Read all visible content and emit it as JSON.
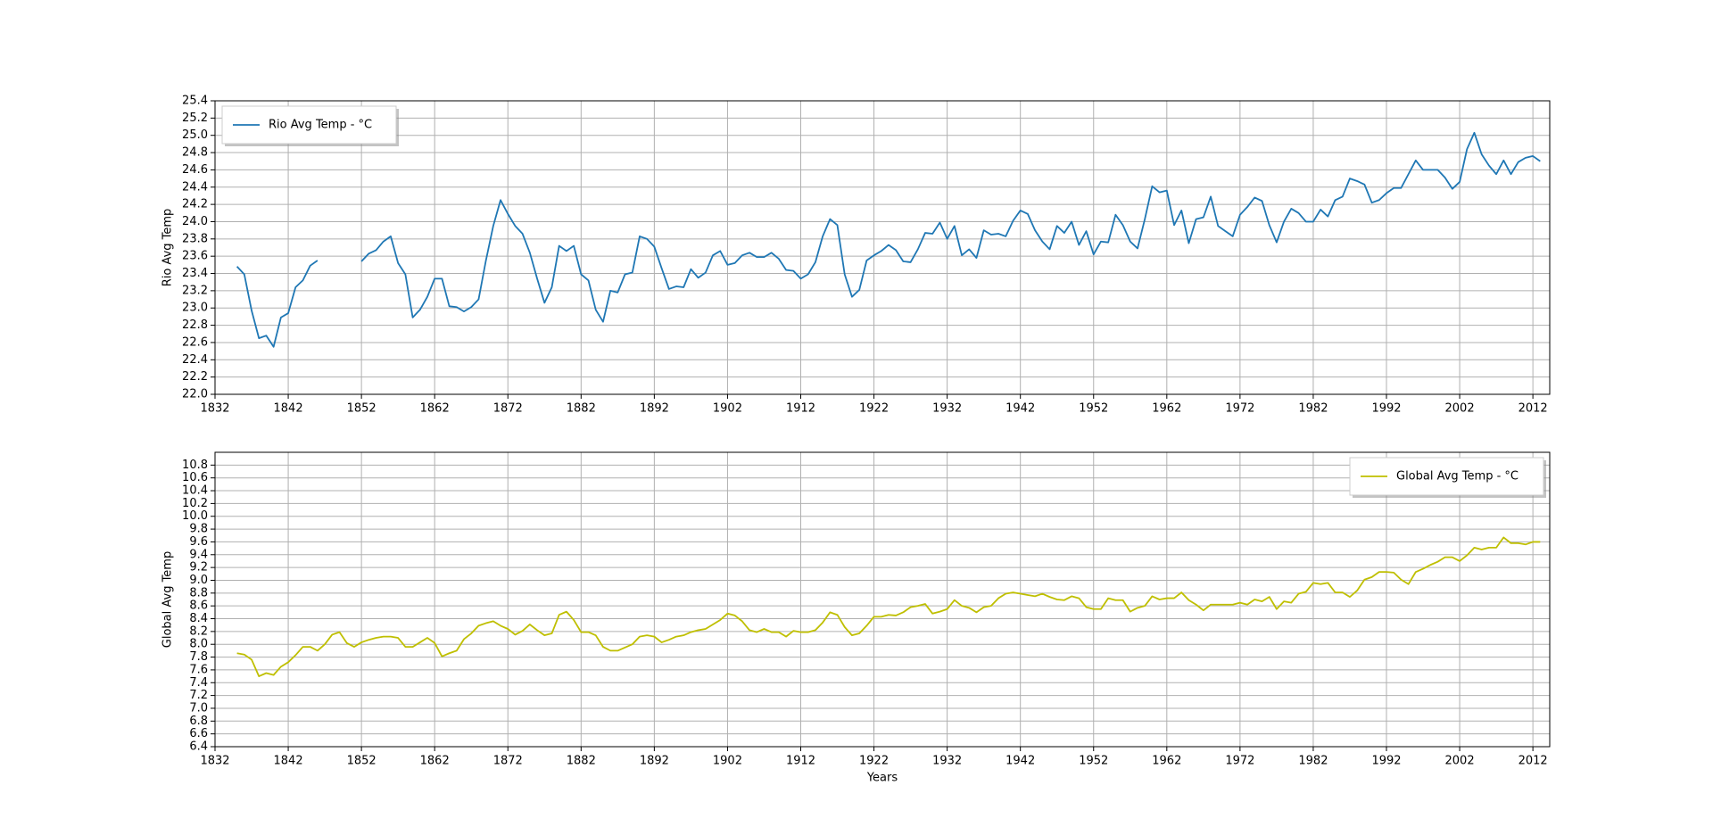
{
  "chart_data": [
    {
      "type": "line",
      "y_label": "Rio Avg Temp",
      "x": [
        1835,
        1836,
        1837,
        1838,
        1839,
        1840,
        1841,
        1842,
        1843,
        1844,
        1845,
        1846,
        1847,
        1848,
        1849,
        1850,
        1851,
        1852,
        1853,
        1854,
        1855,
        1856,
        1857,
        1858,
        1859,
        1860,
        1861,
        1862,
        1863,
        1864,
        1865,
        1866,
        1867,
        1868,
        1869,
        1870,
        1871,
        1872,
        1873,
        1874,
        1875,
        1876,
        1877,
        1878,
        1879,
        1880,
        1881,
        1882,
        1883,
        1884,
        1885,
        1886,
        1887,
        1888,
        1889,
        1890,
        1891,
        1892,
        1893,
        1894,
        1895,
        1896,
        1897,
        1898,
        1899,
        1900,
        1901,
        1902,
        1903,
        1904,
        1905,
        1906,
        1907,
        1908,
        1909,
        1910,
        1911,
        1912,
        1913,
        1914,
        1915,
        1916,
        1917,
        1918,
        1919,
        1920,
        1921,
        1922,
        1923,
        1924,
        1925,
        1926,
        1927,
        1928,
        1929,
        1930,
        1931,
        1932,
        1933,
        1934,
        1935,
        1936,
        1937,
        1938,
        1939,
        1940,
        1941,
        1942,
        1943,
        1944,
        1945,
        1946,
        1947,
        1948,
        1949,
        1950,
        1951,
        1952,
        1953,
        1954,
        1955,
        1956,
        1957,
        1958,
        1959,
        1960,
        1961,
        1962,
        1963,
        1964,
        1965,
        1966,
        1967,
        1968,
        1969,
        1970,
        1971,
        1972,
        1973,
        1974,
        1975,
        1976,
        1977,
        1978,
        1979,
        1980,
        1981,
        1982,
        1983,
        1984,
        1985,
        1986,
        1987,
        1988,
        1989,
        1990,
        1991,
        1992,
        1993,
        1994,
        1995,
        1996,
        1997,
        1998,
        1999,
        2000,
        2001,
        2002,
        2003,
        2004,
        2005,
        2006,
        2007,
        2008,
        2009,
        2010,
        2011,
        2012,
        2013
      ],
      "series": [
        {
          "name": "Rio Avg Temp - °C",
          "color": "#1f77b4",
          "values": [
            23.48,
            23.39,
            22.97,
            22.65,
            22.68,
            22.55,
            22.89,
            22.94,
            23.24,
            23.32,
            23.49,
            23.55,
            null,
            null,
            null,
            null,
            null,
            23.54,
            23.63,
            23.67,
            23.77,
            23.83,
            23.52,
            23.39,
            22.89,
            22.98,
            23.13,
            23.34,
            23.34,
            23.02,
            23.01,
            22.96,
            23.01,
            23.1,
            23.55,
            23.95,
            24.25,
            24.09,
            23.95,
            23.86,
            23.64,
            23.34,
            23.06,
            23.24,
            23.72,
            23.66,
            23.72,
            23.39,
            23.32,
            22.98,
            22.84,
            23.2,
            23.18,
            23.39,
            23.41,
            23.83,
            23.8,
            23.71,
            23.46,
            23.22,
            23.25,
            23.24,
            23.45,
            23.35,
            23.41,
            23.61,
            23.66,
            23.5,
            23.52,
            23.61,
            23.64,
            23.59,
            23.59,
            23.64,
            23.57,
            23.44,
            23.43,
            23.34,
            23.39,
            23.53,
            23.83,
            24.03,
            23.96,
            23.39,
            23.13,
            23.21,
            23.55,
            23.61,
            23.66,
            23.73,
            23.67,
            23.54,
            23.53,
            23.68,
            23.87,
            23.86,
            23.99,
            23.8,
            23.95,
            23.61,
            23.68,
            23.58,
            23.9,
            23.85,
            23.86,
            23.83,
            24.01,
            24.13,
            24.09,
            23.9,
            23.77,
            23.68,
            23.95,
            23.87,
            24.0,
            23.73,
            23.89,
            23.62,
            23.77,
            23.76,
            24.08,
            23.96,
            23.77,
            23.69,
            24.03,
            24.41,
            24.34,
            24.36,
            23.96,
            24.13,
            23.75,
            24.03,
            24.05,
            24.29,
            23.95,
            23.89,
            23.83,
            24.08,
            24.17,
            24.28,
            24.24,
            23.96,
            23.76,
            24.0,
            24.15,
            24.1,
            24.0,
            24.0,
            24.14,
            24.06,
            24.25,
            24.29,
            24.5,
            24.47,
            24.43,
            24.22,
            24.25,
            24.33,
            24.39,
            24.39,
            24.55,
            24.71,
            24.6,
            24.6,
            24.6,
            24.51,
            24.38,
            24.46,
            24.84,
            25.03,
            24.78,
            24.65,
            24.55,
            24.71,
            24.55,
            24.69,
            24.74,
            24.76,
            24.7
          ]
        }
      ],
      "xlim": [
        1832,
        2014.3
      ],
      "xticks": [
        1832,
        1842,
        1852,
        1862,
        1872,
        1882,
        1892,
        1902,
        1912,
        1922,
        1932,
        1942,
        1952,
        1962,
        1972,
        1982,
        1992,
        2002,
        2012
      ],
      "ylim": [
        22.0,
        25.4
      ],
      "yticks": [
        {
          "value": 22.0,
          "label": "22.0"
        },
        22.2,
        22.4,
        22.6,
        22.8,
        {
          "value": 23.0,
          "label": "23.0"
        },
        23.2,
        23.4,
        23.6,
        23.8,
        {
          "value": 24.0,
          "label": "24.0"
        },
        24.2,
        24.4,
        24.6,
        24.8,
        {
          "value": 25.0,
          "label": "25.0"
        },
        25.2,
        25.4
      ],
      "grid": true,
      "legend": "upper left"
    },
    {
      "type": "line",
      "y_label": "Global Avg Temp",
      "x_label": "Years",
      "x": [
        1835,
        1836,
        1837,
        1838,
        1839,
        1840,
        1841,
        1842,
        1843,
        1844,
        1845,
        1846,
        1847,
        1848,
        1849,
        1850,
        1851,
        1852,
        1853,
        1854,
        1855,
        1856,
        1857,
        1858,
        1859,
        1860,
        1861,
        1862,
        1863,
        1864,
        1865,
        1866,
        1867,
        1868,
        1869,
        1870,
        1871,
        1872,
        1873,
        1874,
        1875,
        1876,
        1877,
        1878,
        1879,
        1880,
        1881,
        1882,
        1883,
        1884,
        1885,
        1886,
        1887,
        1888,
        1889,
        1890,
        1891,
        1892,
        1893,
        1894,
        1895,
        1896,
        1897,
        1898,
        1899,
        1900,
        1901,
        1902,
        1903,
        1904,
        1905,
        1906,
        1907,
        1908,
        1909,
        1910,
        1911,
        1912,
        1913,
        1914,
        1915,
        1916,
        1917,
        1918,
        1919,
        1920,
        1921,
        1922,
        1923,
        1924,
        1925,
        1926,
        1927,
        1928,
        1929,
        1930,
        1931,
        1932,
        1933,
        1934,
        1935,
        1936,
        1937,
        1938,
        1939,
        1940,
        1941,
        1942,
        1943,
        1944,
        1945,
        1946,
        1947,
        1948,
        1949,
        1950,
        1951,
        1952,
        1953,
        1954,
        1955,
        1956,
        1957,
        1958,
        1959,
        1960,
        1961,
        1962,
        1963,
        1964,
        1965,
        1966,
        1967,
        1968,
        1969,
        1970,
        1971,
        1972,
        1973,
        1974,
        1975,
        1976,
        1977,
        1978,
        1979,
        1980,
        1981,
        1982,
        1983,
        1984,
        1985,
        1986,
        1987,
        1988,
        1989,
        1990,
        1991,
        1992,
        1993,
        1994,
        1995,
        1996,
        1997,
        1998,
        1999,
        2000,
        2001,
        2002,
        2003,
        2004,
        2005,
        2006,
        2007,
        2008,
        2009,
        2010,
        2011,
        2012,
        2013
      ],
      "series": [
        {
          "name": "Global Avg Temp - °C",
          "color": "#bfbf00",
          "values": [
            7.86,
            7.84,
            7.76,
            7.5,
            7.55,
            7.52,
            7.65,
            7.72,
            7.83,
            7.96,
            7.96,
            7.9,
            8.0,
            8.15,
            8.19,
            8.02,
            7.96,
            8.03,
            8.07,
            8.1,
            8.12,
            8.12,
            8.1,
            7.96,
            7.96,
            8.03,
            8.1,
            8.02,
            7.81,
            7.86,
            7.9,
            8.08,
            8.17,
            8.29,
            8.33,
            8.36,
            8.29,
            8.24,
            8.15,
            8.21,
            8.31,
            8.22,
            8.14,
            8.17,
            8.46,
            8.51,
            8.38,
            8.19,
            8.19,
            8.14,
            7.96,
            7.9,
            7.9,
            7.95,
            8.0,
            8.12,
            8.14,
            8.12,
            8.03,
            8.07,
            8.12,
            8.14,
            8.19,
            8.22,
            8.24,
            8.31,
            8.38,
            8.48,
            8.45,
            8.36,
            8.22,
            8.19,
            8.24,
            8.19,
            8.19,
            8.12,
            8.21,
            8.19,
            8.19,
            8.22,
            8.34,
            8.5,
            8.46,
            8.27,
            8.14,
            8.17,
            8.29,
            8.43,
            8.43,
            8.46,
            8.45,
            8.5,
            8.58,
            8.6,
            8.63,
            8.48,
            8.51,
            8.55,
            8.69,
            8.6,
            8.57,
            8.5,
            8.58,
            8.6,
            8.72,
            8.79,
            8.81,
            8.79,
            8.77,
            8.75,
            8.79,
            8.74,
            8.7,
            8.69,
            8.75,
            8.72,
            8.58,
            8.55,
            8.55,
            8.72,
            8.69,
            8.69,
            8.51,
            8.57,
            8.6,
            8.75,
            8.7,
            8.72,
            8.72,
            8.81,
            8.69,
            8.62,
            8.53,
            8.62,
            8.62,
            8.62,
            8.62,
            8.65,
            8.62,
            8.7,
            8.67,
            8.74,
            8.55,
            8.67,
            8.65,
            8.79,
            8.82,
            8.96,
            8.94,
            8.96,
            8.81,
            8.81,
            8.74,
            8.84,
            9.01,
            9.05,
            9.13,
            9.13,
            9.12,
            9.01,
            8.94,
            9.13,
            9.18,
            9.24,
            9.29,
            9.36,
            9.36,
            9.3,
            9.39,
            9.51,
            9.48,
            9.51,
            9.51,
            9.67,
            9.58,
            9.58,
            9.56,
            9.6,
            9.6
          ]
        }
      ],
      "xlim": [
        1832,
        2014.3
      ],
      "xticks": [
        1832,
        1842,
        1852,
        1862,
        1872,
        1882,
        1892,
        1902,
        1912,
        1922,
        1932,
        1942,
        1952,
        1962,
        1972,
        1982,
        1992,
        2002,
        2012
      ],
      "ylim": [
        6.4,
        11.0
      ],
      "yticks": [
        6.4,
        6.6,
        6.8,
        {
          "value": 7.0,
          "label": "7.0"
        },
        7.2,
        7.4,
        7.6,
        7.8,
        {
          "value": 8.0,
          "label": "8.0"
        },
        8.2,
        8.4,
        8.6,
        8.8,
        {
          "value": 9.0,
          "label": "9.0"
        },
        9.2,
        9.4,
        9.6,
        9.8,
        {
          "value": 10.0,
          "label": "10.0"
        },
        10.2,
        10.4,
        10.6,
        10.8
      ],
      "grid": true,
      "legend": "upper right"
    }
  ]
}
